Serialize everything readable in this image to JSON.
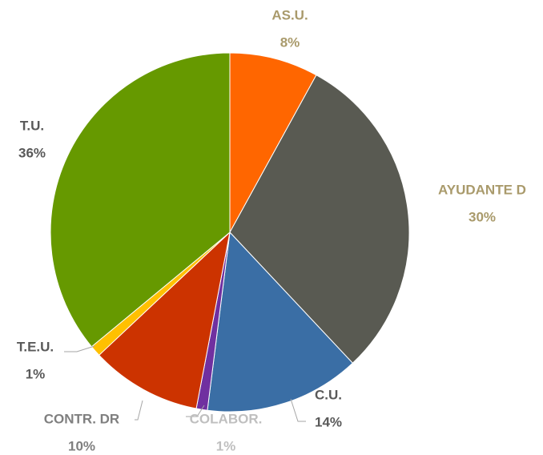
{
  "chart_data": {
    "type": "pie",
    "categories": [
      "AS.U.",
      "AYUDANTE D",
      "C.U.",
      "COLABOR.",
      "CONTR. DR",
      "T.E.U.",
      "T.U."
    ],
    "values": [
      8,
      30,
      14,
      1,
      10,
      1,
      36
    ],
    "value_labels": [
      "8%",
      "30%",
      "14%",
      "1%",
      "10%",
      "1%",
      "36%"
    ],
    "colors": [
      "#ff6600",
      "#595a52",
      "#3a6ea5",
      "#7030a0",
      "#cc3300",
      "#ffc000",
      "#669900"
    ],
    "label_colors": [
      "#a99a6b",
      "#a99a6b",
      "#595959",
      "#bfbfbf",
      "#7f7f7f",
      "#595959",
      "#595959"
    ]
  }
}
